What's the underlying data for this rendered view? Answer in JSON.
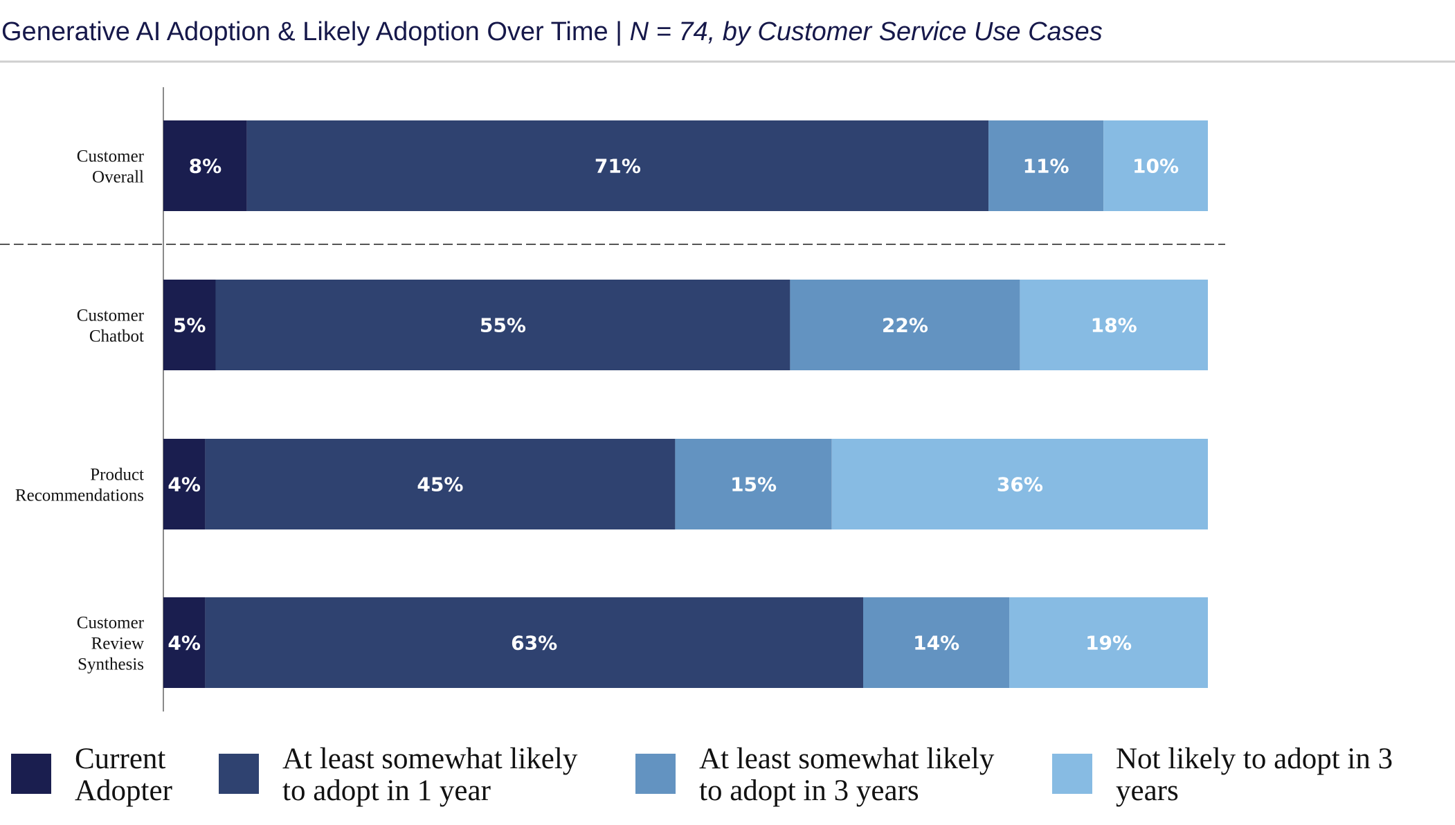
{
  "title": {
    "main": "Generative AI Adoption & Likely Adoption Over Time | ",
    "italic": "N = 74, by Customer Service Use Cases"
  },
  "colors": {
    "title": "#16184a",
    "rule": "#cfcfcf",
    "axis": "#8a8a8a",
    "divider": "#555555"
  },
  "chart_data": {
    "type": "bar",
    "orientation": "horizontal",
    "stacked": true,
    "xlim": [
      0,
      100
    ],
    "grid": false,
    "legend_position": "bottom",
    "categories": [
      [
        "Customer",
        "Overall"
      ],
      [
        "Customer",
        "Chatbot"
      ],
      [
        "Product",
        "Recommendations"
      ],
      [
        "Customer",
        "Review",
        "Synthesis"
      ]
    ],
    "series": [
      {
        "name": [
          "Current",
          "Adopter"
        ],
        "color": "#1a1e4f",
        "values": [
          8,
          5,
          4,
          4
        ],
        "labels": [
          "8%",
          "5%",
          "4%",
          "4%"
        ]
      },
      {
        "name": [
          "At least somewhat likely",
          "to adopt in 1 year"
        ],
        "color": "#2f4270",
        "values": [
          71,
          55,
          45,
          63
        ],
        "labels": [
          "71%",
          "55%",
          "45%",
          "63%"
        ]
      },
      {
        "name": [
          "At least somewhat likely",
          "to adopt in 3 years"
        ],
        "color": "#6393c1",
        "values": [
          11,
          22,
          15,
          14
        ],
        "labels": [
          "11%",
          "22%",
          "15%",
          "14%"
        ]
      },
      {
        "name": [
          "Not likely to adopt in 3",
          "years"
        ],
        "color": "#87bbe3",
        "values": [
          10,
          18,
          36,
          19
        ],
        "labels": [
          "10%",
          "18%",
          "36%",
          "19%"
        ]
      }
    ]
  }
}
